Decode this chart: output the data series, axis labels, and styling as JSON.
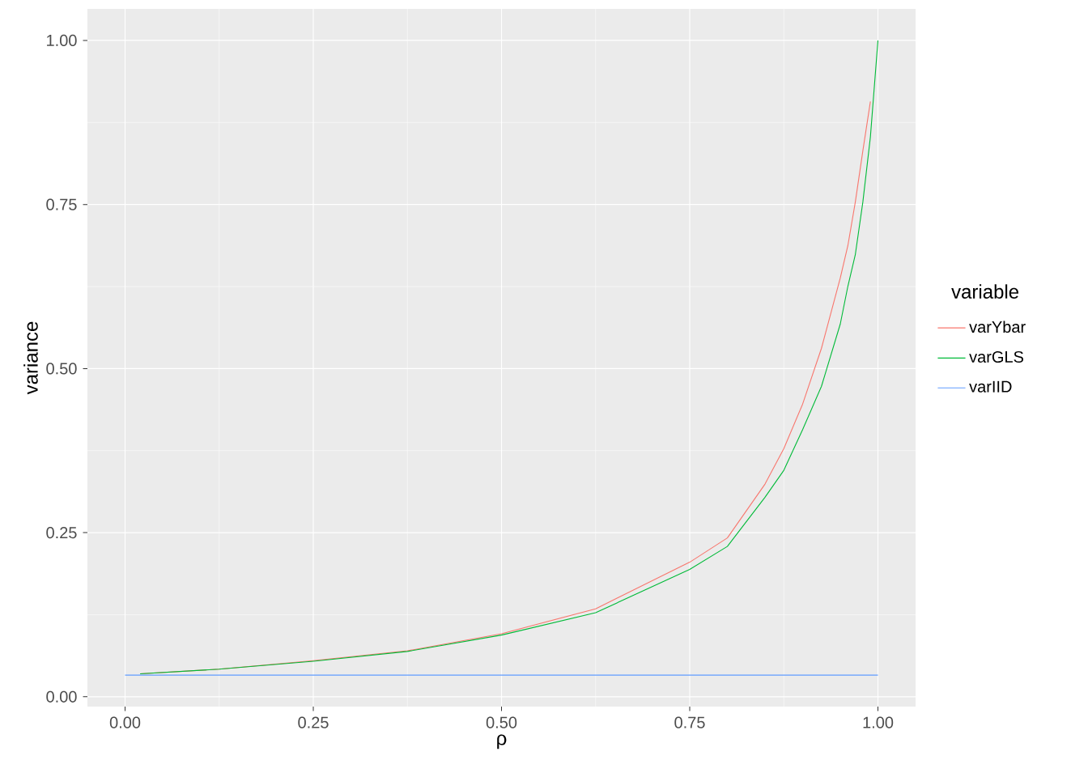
{
  "chart_data": {
    "type": "line",
    "xlabel": "ρ",
    "ylabel": "variance",
    "legend_title": "variable",
    "legend": "right",
    "grid": true,
    "xlim": [
      -0.05,
      1.05
    ],
    "ylim": [
      -0.015,
      1.048
    ],
    "xticks": [
      {
        "value": 0,
        "label": "0.00"
      },
      {
        "value": 0.25,
        "label": "0.25"
      },
      {
        "value": 0.5,
        "label": "0.50"
      },
      {
        "value": 0.75,
        "label": "0.75"
      },
      {
        "value": 1,
        "label": "1.00"
      }
    ],
    "yticks": [
      {
        "value": 0,
        "label": "0.00"
      },
      {
        "value": 0.25,
        "label": "0.25"
      },
      {
        "value": 0.5,
        "label": "0.50"
      },
      {
        "value": 0.75,
        "label": "0.75"
      },
      {
        "value": 1,
        "label": "1.00"
      }
    ],
    "series": [
      {
        "name": "varYbar",
        "color": "#f8766d",
        "x": [
          0.02,
          0.125,
          0.25,
          0.375,
          0.5,
          0.625,
          0.75,
          0.8,
          0.85,
          0.875,
          0.9,
          0.925,
          0.95,
          0.96,
          0.97,
          0.98,
          0.99
        ],
        "values": [
          0.035,
          0.042,
          0.055,
          0.07,
          0.096,
          0.134,
          0.205,
          0.242,
          0.324,
          0.378,
          0.446,
          0.531,
          0.638,
          0.687,
          0.754,
          0.832,
          0.907
        ]
      },
      {
        "name": "varGLS",
        "color": "#00ba38",
        "x": [
          0.02,
          0.125,
          0.25,
          0.375,
          0.5,
          0.625,
          0.75,
          0.8,
          0.85,
          0.875,
          0.9,
          0.925,
          0.95,
          0.96,
          0.97,
          0.98,
          0.99,
          1.0
        ],
        "values": [
          0.035,
          0.042,
          0.054,
          0.069,
          0.094,
          0.128,
          0.194,
          0.229,
          0.304,
          0.345,
          0.407,
          0.473,
          0.568,
          0.625,
          0.674,
          0.754,
          0.853,
          1.0
        ]
      },
      {
        "name": "varIID",
        "color": "#619cff",
        "x": [
          0,
          1
        ],
        "values": [
          0.033,
          0.033
        ]
      }
    ]
  }
}
